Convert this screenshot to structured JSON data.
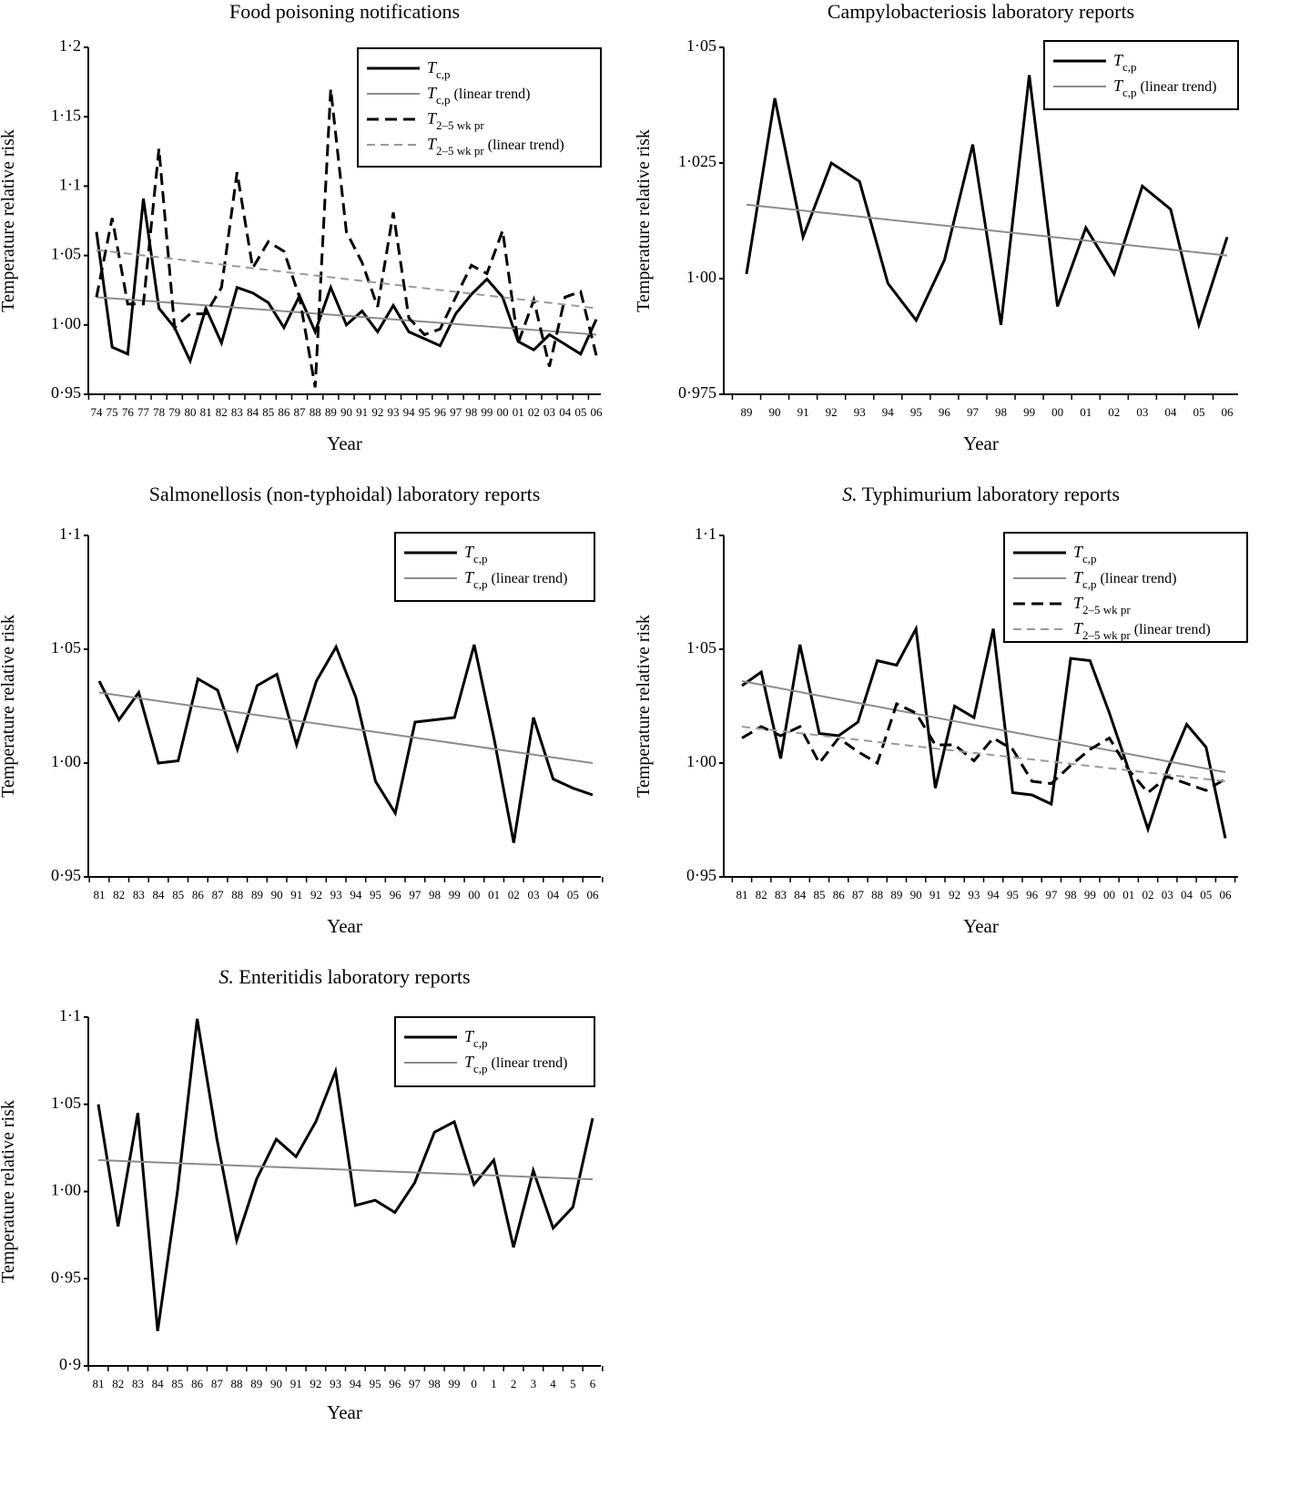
{
  "chart_data": [
    {
      "type": "line",
      "title": "Food poisoning notifications",
      "xlabel": "Year",
      "ylabel": "Temperature relative risk",
      "ylim": [
        0.95,
        1.2
      ],
      "yticks": [
        0.95,
        1.0,
        1.05,
        1.1,
        1.15,
        1.2
      ],
      "ytick_labels": [
        "0·95",
        "1·00",
        "1·05",
        "1·1",
        "1·15",
        "1·2"
      ],
      "categories": [
        "74",
        "75",
        "76",
        "77",
        "78",
        "79",
        "80",
        "81",
        "82",
        "83",
        "84",
        "85",
        "86",
        "87",
        "88",
        "89",
        "90",
        "91",
        "92",
        "93",
        "94",
        "95",
        "96",
        "97",
        "98",
        "99",
        "00",
        "01",
        "02",
        "03",
        "04",
        "05",
        "06"
      ],
      "legend_position": "top-right",
      "series": [
        {
          "name": "T c,p",
          "label": {
            "main": "T",
            "sub": "c,p",
            "suffix": ""
          },
          "style": "solid-black",
          "values": [
            1.067,
            0.984,
            0.979,
            1.091,
            1.012,
            0.998,
            0.974,
            1.012,
            0.987,
            1.027,
            1.023,
            1.016,
            0.998,
            1.021,
            0.995,
            1.027,
            1.0,
            1.01,
            0.995,
            1.014,
            0.995,
            0.99,
            0.985,
            1.008,
            1.022,
            1.033,
            1.02,
            0.988,
            0.982,
            0.993,
            0.986,
            0.979,
            1.004
          ]
        },
        {
          "name": "T c,p (linear trend)",
          "label": {
            "main": "T",
            "sub": "c,p",
            "suffix": " (linear trend)"
          },
          "style": "solid-gray",
          "trend": [
            1.02,
            0.993
          ]
        },
        {
          "name": "T 2–5 wk pr",
          "label": {
            "main": "T",
            "sub": "2–5 wk pr",
            "suffix": ""
          },
          "style": "dash-black",
          "values": [
            1.02,
            1.077,
            1.015,
            1.015,
            1.127,
            0.998,
            1.008,
            1.008,
            1.027,
            1.11,
            1.041,
            1.06,
            1.053,
            1.02,
            0.955,
            1.17,
            1.067,
            1.045,
            1.013,
            1.081,
            1.005,
            0.993,
            0.997,
            1.02,
            1.043,
            1.037,
            1.068,
            0.987,
            1.018,
            0.97,
            1.02,
            1.024,
            0.978
          ]
        },
        {
          "name": "T 2–5 wk pr (linear trend)",
          "label": {
            "main": "T",
            "sub": "2–5 wk pr",
            "suffix": " (linear trend)"
          },
          "style": "dash-gray",
          "trend": [
            1.054,
            1.012
          ]
        }
      ]
    },
    {
      "type": "line",
      "title": "Campylobacteriosis laboratory reports",
      "xlabel": "Year",
      "ylabel": "Temperature relative risk",
      "ylim": [
        0.975,
        1.05
      ],
      "yticks": [
        0.975,
        1.0,
        1.025,
        1.05
      ],
      "ytick_labels": [
        "0·975",
        "1·00",
        "1·025",
        "1·05"
      ],
      "categories": [
        "89",
        "90",
        "91",
        "92",
        "93",
        "94",
        "95",
        "96",
        "97",
        "98",
        "99",
        "00",
        "01",
        "02",
        "03",
        "04",
        "05",
        "06"
      ],
      "legend_position": "top-right",
      "series": [
        {
          "name": "T c,p",
          "label": {
            "main": "T",
            "sub": "c,p",
            "suffix": ""
          },
          "style": "solid-black",
          "values": [
            1.001,
            1.039,
            1.009,
            1.025,
            1.021,
            0.999,
            0.991,
            1.004,
            1.029,
            0.99,
            1.044,
            0.994,
            1.011,
            1.001,
            1.02,
            1.015,
            0.99,
            1.009
          ]
        },
        {
          "name": "T c,p (linear trend)",
          "label": {
            "main": "T",
            "sub": "c,p",
            "suffix": " (linear trend)"
          },
          "style": "solid-gray",
          "trend": [
            1.016,
            1.005
          ]
        }
      ]
    },
    {
      "type": "line",
      "title": "Salmonellosis (non-typhoidal) laboratory reports",
      "title_italic": "",
      "xlabel": "Year",
      "ylabel": "Temperature relative risk",
      "ylim": [
        0.95,
        1.1
      ],
      "yticks": [
        0.95,
        1.0,
        1.05,
        1.1
      ],
      "ytick_labels": [
        "0·95",
        "1·00",
        "1·05",
        "1·1"
      ],
      "categories": [
        "81",
        "82",
        "83",
        "84",
        "85",
        "86",
        "87",
        "88",
        "89",
        "90",
        "91",
        "92",
        "93",
        "94",
        "95",
        "96",
        "97",
        "98",
        "99",
        "00",
        "01",
        "02",
        "03",
        "04",
        "05",
        "06"
      ],
      "legend_position": "top-right",
      "series": [
        {
          "name": "T c,p",
          "label": {
            "main": "T",
            "sub": "c,p",
            "suffix": ""
          },
          "style": "solid-black",
          "values": [
            1.036,
            1.019,
            1.031,
            1.0,
            1.001,
            1.037,
            1.032,
            1.006,
            1.034,
            1.039,
            1.008,
            1.036,
            1.051,
            1.029,
            0.992,
            0.978,
            1.018,
            1.019,
            1.02,
            1.052,
            1.011,
            0.965,
            1.02,
            0.993,
            0.989,
            0.986
          ]
        },
        {
          "name": "T c,p (linear trend)",
          "label": {
            "main": "T",
            "sub": "c,p",
            "suffix": " (linear trend)"
          },
          "style": "solid-gray",
          "trend": [
            1.031,
            1.0
          ]
        }
      ]
    },
    {
      "type": "line",
      "title": " Typhimurium laboratory reports",
      "title_italic": "S.",
      "xlabel": "Year",
      "ylabel": "Temperature relative risk",
      "ylim": [
        0.95,
        1.1
      ],
      "yticks": [
        0.95,
        1.0,
        1.05,
        1.1
      ],
      "ytick_labels": [
        "0·95",
        "1·00",
        "1·05",
        "1·1"
      ],
      "categories": [
        "81",
        "82",
        "83",
        "84",
        "85",
        "86",
        "87",
        "88",
        "89",
        "90",
        "91",
        "92",
        "93",
        "94",
        "95",
        "96",
        "97",
        "98",
        "99",
        "00",
        "01",
        "02",
        "03",
        "04",
        "05",
        "06"
      ],
      "legend_position": "top-right",
      "series": [
        {
          "name": "T c,p",
          "label": {
            "main": "T",
            "sub": "c,p",
            "suffix": ""
          },
          "style": "solid-black",
          "values": [
            1.034,
            1.04,
            1.002,
            1.052,
            1.013,
            1.012,
            1.018,
            1.045,
            1.043,
            1.059,
            0.989,
            1.025,
            1.02,
            1.059,
            0.987,
            0.986,
            0.982,
            1.046,
            1.045,
            1.022,
            0.997,
            0.971,
            0.997,
            1.017,
            1.007,
            0.967
          ]
        },
        {
          "name": "T c,p (linear trend)",
          "label": {
            "main": "T",
            "sub": "c,p",
            "suffix": " (linear trend)"
          },
          "style": "solid-gray",
          "trend": [
            1.036,
            0.996
          ]
        },
        {
          "name": "T 2–5 wk pr",
          "label": {
            "main": "T",
            "sub": "2–5 wk pr",
            "suffix": ""
          },
          "style": "dash-black",
          "values": [
            1.011,
            1.016,
            1.012,
            1.016,
            1.0,
            1.011,
            1.005,
            1.0,
            1.026,
            1.022,
            1.008,
            1.008,
            1.001,
            1.011,
            1.006,
            0.992,
            0.991,
            0.999,
            1.006,
            1.011,
            0.997,
            0.987,
            0.994,
            0.991,
            0.988,
            0.993
          ]
        },
        {
          "name": "T 2–5 wk pr (linear trend)",
          "label": {
            "main": "T",
            "sub": "2–5 wk pr",
            "suffix": " (linear trend)"
          },
          "style": "dash-gray",
          "trend": [
            1.016,
            0.992
          ]
        }
      ]
    },
    {
      "type": "line",
      "title": " Enteritidis laboratory reports",
      "title_italic": "S.",
      "xlabel": "Year",
      "ylabel": "Temperature relative risk",
      "ylim": [
        0.9,
        1.1
      ],
      "yticks": [
        0.9,
        0.95,
        1.0,
        1.05,
        1.1
      ],
      "ytick_labels": [
        "0·9",
        "0·95",
        "1·00",
        "1·05",
        "1·1"
      ],
      "categories": [
        "81",
        "82",
        "83",
        "84",
        "85",
        "86",
        "87",
        "88",
        "89",
        "90",
        "91",
        "92",
        "93",
        "94",
        "95",
        "96",
        "97",
        "98",
        "99",
        "0",
        "1",
        "2",
        "3",
        "4",
        "5",
        "6"
      ],
      "legend_position": "top-right",
      "series": [
        {
          "name": "T c,p",
          "label": {
            "main": "T",
            "sub": "c,p",
            "suffix": ""
          },
          "style": "solid-black",
          "values": [
            1.05,
            0.98,
            1.045,
            0.92,
            1.0,
            1.099,
            1.03,
            0.972,
            1.007,
            1.03,
            1.02,
            1.04,
            1.069,
            0.992,
            0.995,
            0.988,
            1.005,
            1.034,
            1.04,
            1.004,
            1.018,
            0.968,
            1.012,
            0.979,
            0.991,
            1.042
          ]
        },
        {
          "name": "T c,p (linear trend)",
          "label": {
            "main": "T",
            "sub": "c,p",
            "suffix": " (linear trend)"
          },
          "style": "solid-gray",
          "trend": [
            1.018,
            1.007
          ]
        }
      ]
    }
  ]
}
